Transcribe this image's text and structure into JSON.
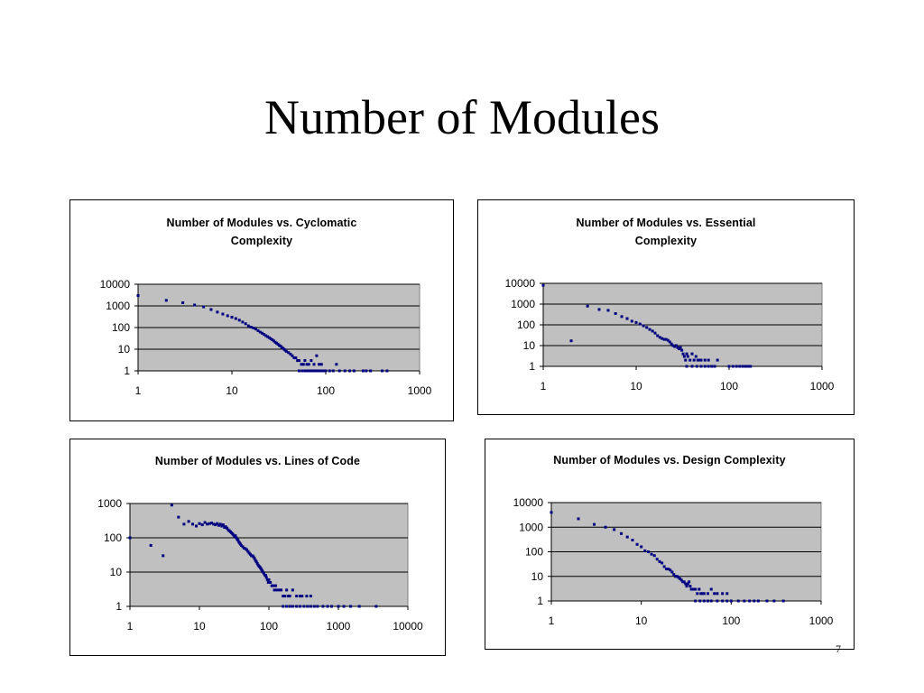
{
  "slide": {
    "title": "Number of Modules",
    "page_number": "7"
  },
  "chart_data": [
    {
      "type": "scatter",
      "title": "Number of Modules vs. Cyclomatic Complexity",
      "xscale": "log",
      "yscale": "log",
      "xlim": [
        1,
        1000
      ],
      "ylim": [
        1,
        10000
      ],
      "xticks": [
        "1",
        "10",
        "100",
        "1000"
      ],
      "yticks": [
        "1",
        "10",
        "100",
        "1000",
        "10000"
      ],
      "grid": "horizontal",
      "plot_color": "#c0c0c0",
      "marker_color": "#000080",
      "points": [
        [
          1,
          3000
        ],
        [
          2,
          1800
        ],
        [
          3,
          1400
        ],
        [
          4,
          1100
        ],
        [
          5,
          900
        ],
        [
          6,
          680
        ],
        [
          7,
          520
        ],
        [
          8,
          420
        ],
        [
          9,
          350
        ],
        [
          10,
          300
        ],
        [
          11,
          260
        ],
        [
          12,
          220
        ],
        [
          13,
          180
        ],
        [
          14,
          150
        ],
        [
          15,
          120
        ],
        [
          16,
          105
        ],
        [
          17,
          95
        ],
        [
          18,
          85
        ],
        [
          19,
          72
        ],
        [
          20,
          62
        ],
        [
          21,
          55
        ],
        [
          22,
          48
        ],
        [
          23,
          42
        ],
        [
          24,
          38
        ],
        [
          25,
          34
        ],
        [
          26,
          30
        ],
        [
          27,
          27
        ],
        [
          28,
          24
        ],
        [
          29,
          21
        ],
        [
          30,
          19
        ],
        [
          31,
          17
        ],
        [
          32,
          15
        ],
        [
          33,
          14
        ],
        [
          34,
          12
        ],
        [
          35,
          11
        ],
        [
          36,
          10
        ],
        [
          37,
          9
        ],
        [
          38,
          8
        ],
        [
          40,
          7
        ],
        [
          42,
          6
        ],
        [
          44,
          5
        ],
        [
          46,
          4
        ],
        [
          48,
          4
        ],
        [
          50,
          3
        ],
        [
          52,
          3
        ],
        [
          55,
          2
        ],
        [
          58,
          2
        ],
        [
          60,
          3
        ],
        [
          63,
          2
        ],
        [
          66,
          2
        ],
        [
          70,
          3
        ],
        [
          75,
          2
        ],
        [
          80,
          5
        ],
        [
          85,
          2
        ],
        [
          90,
          2
        ],
        [
          52,
          1
        ],
        [
          56,
          1
        ],
        [
          60,
          1
        ],
        [
          64,
          1
        ],
        [
          68,
          1
        ],
        [
          72,
          1
        ],
        [
          76,
          1
        ],
        [
          80,
          1
        ],
        [
          85,
          1
        ],
        [
          90,
          1
        ],
        [
          95,
          1
        ],
        [
          100,
          1
        ],
        [
          110,
          1
        ],
        [
          120,
          1
        ],
        [
          130,
          2
        ],
        [
          140,
          1
        ],
        [
          160,
          1
        ],
        [
          180,
          1
        ],
        [
          200,
          1
        ],
        [
          250,
          1
        ],
        [
          270,
          1
        ],
        [
          300,
          1
        ],
        [
          400,
          1
        ],
        [
          450,
          1
        ]
      ]
    },
    {
      "type": "scatter",
      "title": "Number of Modules vs. Essential Complexity",
      "xscale": "log",
      "yscale": "log",
      "xlim": [
        1,
        1000
      ],
      "ylim": [
        1,
        10000
      ],
      "xticks": [
        "1",
        "10",
        "100",
        "1000"
      ],
      "yticks": [
        "1",
        "10",
        "100",
        "1000",
        "10000"
      ],
      "grid": "horizontal",
      "plot_color": "#c0c0c0",
      "marker_color": "#000080",
      "points": [
        [
          1,
          8000
        ],
        [
          2,
          17
        ],
        [
          3,
          800
        ],
        [
          4,
          550
        ],
        [
          5,
          500
        ],
        [
          6,
          350
        ],
        [
          7,
          250
        ],
        [
          8,
          200
        ],
        [
          9,
          150
        ],
        [
          10,
          130
        ],
        [
          11,
          110
        ],
        [
          12,
          90
        ],
        [
          13,
          75
        ],
        [
          14,
          60
        ],
        [
          15,
          50
        ],
        [
          16,
          40
        ],
        [
          17,
          30
        ],
        [
          18,
          25
        ],
        [
          19,
          22
        ],
        [
          20,
          20
        ],
        [
          21,
          20
        ],
        [
          22,
          18
        ],
        [
          23,
          15
        ],
        [
          24,
          12
        ],
        [
          25,
          10
        ],
        [
          26,
          9
        ],
        [
          27,
          10
        ],
        [
          28,
          8
        ],
        [
          29,
          7
        ],
        [
          30,
          8
        ],
        [
          31,
          6
        ],
        [
          32,
          4
        ],
        [
          33,
          3
        ],
        [
          34,
          2
        ],
        [
          35,
          4
        ],
        [
          36,
          3
        ],
        [
          38,
          2
        ],
        [
          40,
          4
        ],
        [
          42,
          2
        ],
        [
          44,
          3
        ],
        [
          46,
          2
        ],
        [
          48,
          2
        ],
        [
          50,
          2
        ],
        [
          55,
          2
        ],
        [
          60,
          2
        ],
        [
          75,
          2
        ],
        [
          35,
          1
        ],
        [
          40,
          1
        ],
        [
          45,
          1
        ],
        [
          50,
          1
        ],
        [
          55,
          1
        ],
        [
          60,
          1
        ],
        [
          65,
          1
        ],
        [
          70,
          1
        ],
        [
          100,
          1
        ],
        [
          110,
          1
        ],
        [
          120,
          1
        ],
        [
          130,
          1
        ],
        [
          140,
          1
        ],
        [
          150,
          1
        ],
        [
          160,
          1
        ],
        [
          170,
          1
        ]
      ]
    },
    {
      "type": "scatter",
      "title": "Number of Modules vs. Lines of Code",
      "xscale": "log",
      "yscale": "log",
      "xlim": [
        1,
        10000
      ],
      "ylim": [
        1,
        1000
      ],
      "xticks": [
        "1",
        "10",
        "100",
        "1000",
        "10000"
      ],
      "yticks": [
        "1",
        "10",
        "100",
        "1000"
      ],
      "grid": "horizontal",
      "plot_color": "#c0c0c0",
      "marker_color": "#000080",
      "points": [
        [
          1,
          100
        ],
        [
          2,
          60
        ],
        [
          3,
          30
        ],
        [
          4,
          900
        ],
        [
          5,
          400
        ],
        [
          6,
          250
        ],
        [
          7,
          300
        ],
        [
          8,
          250
        ],
        [
          9,
          220
        ],
        [
          10,
          260
        ],
        [
          11,
          240
        ],
        [
          12,
          280
        ],
        [
          13,
          250
        ],
        [
          14,
          260
        ],
        [
          15,
          270
        ],
        [
          16,
          250
        ],
        [
          17,
          240
        ],
        [
          18,
          260
        ],
        [
          19,
          230
        ],
        [
          20,
          250
        ],
        [
          21,
          220
        ],
        [
          22,
          240
        ],
        [
          23,
          200
        ],
        [
          24,
          210
        ],
        [
          25,
          190
        ],
        [
          26,
          170
        ],
        [
          27,
          160
        ],
        [
          28,
          150
        ],
        [
          29,
          140
        ],
        [
          30,
          130
        ],
        [
          31,
          120
        ],
        [
          32,
          110
        ],
        [
          33,
          115
        ],
        [
          34,
          100
        ],
        [
          35,
          90
        ],
        [
          36,
          85
        ],
        [
          37,
          75
        ],
        [
          38,
          70
        ],
        [
          39,
          65
        ],
        [
          40,
          60
        ],
        [
          42,
          55
        ],
        [
          44,
          50
        ],
        [
          46,
          48
        ],
        [
          48,
          45
        ],
        [
          50,
          40
        ],
        [
          52,
          36
        ],
        [
          54,
          33
        ],
        [
          56,
          30
        ],
        [
          58,
          30
        ],
        [
          60,
          28
        ],
        [
          62,
          25
        ],
        [
          64,
          22
        ],
        [
          66,
          20
        ],
        [
          68,
          18
        ],
        [
          70,
          16
        ],
        [
          72,
          15
        ],
        [
          74,
          14
        ],
        [
          76,
          13
        ],
        [
          78,
          12
        ],
        [
          80,
          11
        ],
        [
          82,
          10
        ],
        [
          85,
          9
        ],
        [
          88,
          8
        ],
        [
          90,
          8
        ],
        [
          92,
          7
        ],
        [
          95,
          6
        ],
        [
          98,
          5
        ],
        [
          100,
          6
        ],
        [
          105,
          5
        ],
        [
          110,
          4
        ],
        [
          115,
          4
        ],
        [
          120,
          3
        ],
        [
          125,
          4
        ],
        [
          130,
          3
        ],
        [
          140,
          3
        ],
        [
          150,
          3
        ],
        [
          160,
          2
        ],
        [
          170,
          2
        ],
        [
          180,
          3
        ],
        [
          190,
          2
        ],
        [
          200,
          2
        ],
        [
          220,
          3
        ],
        [
          250,
          2
        ],
        [
          280,
          2
        ],
        [
          300,
          2
        ],
        [
          350,
          2
        ],
        [
          400,
          2
        ],
        [
          160,
          1
        ],
        [
          180,
          1
        ],
        [
          200,
          1
        ],
        [
          220,
          1
        ],
        [
          250,
          1
        ],
        [
          280,
          1
        ],
        [
          320,
          1
        ],
        [
          360,
          1
        ],
        [
          400,
          1
        ],
        [
          450,
          1
        ],
        [
          500,
          1
        ],
        [
          600,
          1
        ],
        [
          700,
          1
        ],
        [
          800,
          1
        ],
        [
          1000,
          1
        ],
        [
          1200,
          1
        ],
        [
          1500,
          1
        ],
        [
          2000,
          1
        ],
        [
          3500,
          1
        ]
      ]
    },
    {
      "type": "scatter",
      "title": "Number of Modules vs. Design Complexity",
      "xscale": "log",
      "yscale": "log",
      "xlim": [
        1,
        1000
      ],
      "ylim": [
        1,
        10000
      ],
      "xticks": [
        "1",
        "10",
        "100",
        "1000"
      ],
      "yticks": [
        "1",
        "10",
        "100",
        "1000",
        "10000"
      ],
      "grid": "horizontal",
      "plot_color": "#c0c0c0",
      "marker_color": "#000080",
      "points": [
        [
          1,
          4000
        ],
        [
          2,
          2200
        ],
        [
          3,
          1300
        ],
        [
          4,
          1000
        ],
        [
          5,
          800
        ],
        [
          6,
          550
        ],
        [
          7,
          400
        ],
        [
          8,
          300
        ],
        [
          9,
          200
        ],
        [
          10,
          160
        ],
        [
          11,
          110
        ],
        [
          12,
          100
        ],
        [
          13,
          80
        ],
        [
          14,
          70
        ],
        [
          15,
          50
        ],
        [
          16,
          40
        ],
        [
          17,
          35
        ],
        [
          18,
          25
        ],
        [
          19,
          20
        ],
        [
          20,
          20
        ],
        [
          21,
          18
        ],
        [
          22,
          15
        ],
        [
          23,
          12
        ],
        [
          24,
          10
        ],
        [
          25,
          10
        ],
        [
          26,
          9
        ],
        [
          27,
          8
        ],
        [
          28,
          7
        ],
        [
          29,
          6
        ],
        [
          30,
          6
        ],
        [
          31,
          5
        ],
        [
          32,
          4
        ],
        [
          33,
          5
        ],
        [
          34,
          6
        ],
        [
          35,
          4
        ],
        [
          36,
          3
        ],
        [
          38,
          3
        ],
        [
          40,
          3
        ],
        [
          42,
          2
        ],
        [
          44,
          3
        ],
        [
          46,
          2
        ],
        [
          48,
          2
        ],
        [
          50,
          2
        ],
        [
          55,
          2
        ],
        [
          60,
          3
        ],
        [
          65,
          2
        ],
        [
          70,
          2
        ],
        [
          80,
          2
        ],
        [
          90,
          2
        ],
        [
          40,
          1
        ],
        [
          45,
          1
        ],
        [
          50,
          1
        ],
        [
          55,
          1
        ],
        [
          60,
          1
        ],
        [
          70,
          1
        ],
        [
          80,
          1
        ],
        [
          90,
          1
        ],
        [
          100,
          1
        ],
        [
          120,
          1
        ],
        [
          140,
          1
        ],
        [
          160,
          1
        ],
        [
          180,
          1
        ],
        [
          200,
          1
        ],
        [
          250,
          1
        ],
        [
          300,
          1
        ],
        [
          380,
          1
        ]
      ]
    }
  ]
}
